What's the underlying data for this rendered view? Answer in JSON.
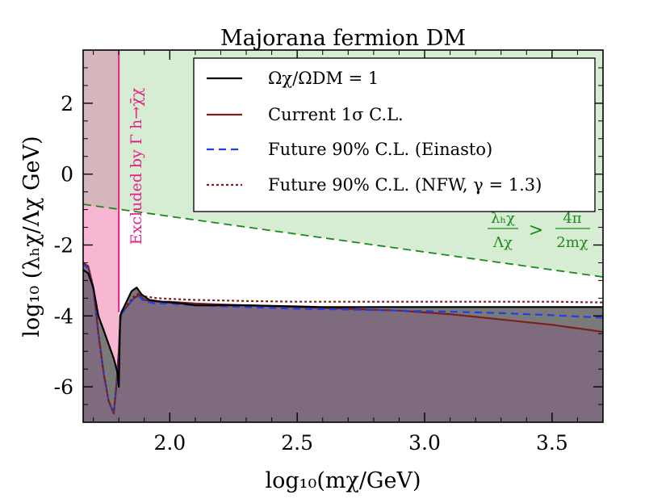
{
  "chart_data": {
    "type": "line",
    "title": "Majorana fermion DM",
    "xlabel": "log₁₀(mχ/GeV)",
    "ylabel": "log₁₀ (λₕχ/Λχ GeV)",
    "xlim": [
      1.66,
      3.7
    ],
    "ylim": [
      -7.0,
      3.5
    ],
    "x_ticks": [
      2.0,
      2.5,
      3.0,
      3.5
    ],
    "x_tick_labels": [
      "2.0",
      "2.5",
      "3.0",
      "3.5"
    ],
    "y_ticks": [
      2,
      0,
      -2,
      -4,
      -6
    ],
    "y_tick_labels": [
      "2",
      "0",
      "-2",
      "-4",
      "-6"
    ],
    "legend_position": "top-right",
    "legend": [
      {
        "label": "Ωχ/ΩDM = 1",
        "style": "solid",
        "color": "#000000"
      },
      {
        "label": "Current 1σ C.L.",
        "style": "solid",
        "color": "#7b1f1f"
      },
      {
        "label": "Future 90% C.L. (Einasto)",
        "style": "dashed",
        "color": "#1f3fe8"
      },
      {
        "label": "Future 90% C.L. (NFW, γ = 1.3)",
        "style": "dotted",
        "color": "#7b1f1f"
      }
    ],
    "annotations": {
      "excluded_label": "Excluded by Γ h→χ̄χ",
      "unitarity_lhs_num": "λₕχ",
      "unitarity_lhs_den": "Λχ",
      "unitarity_op": ">",
      "unitarity_rhs_num": "4π",
      "unitarity_rhs_den": "2mχ"
    },
    "regions": {
      "invisible_decay_boundary_x": 1.8,
      "unitarity_line": {
        "x": [
          1.66,
          3.7
        ],
        "y": [
          -0.85,
          -2.9
        ]
      }
    },
    "series": [
      {
        "name": "Ωχ/ΩDM = 1",
        "x": [
          1.66,
          1.68,
          1.7,
          1.72,
          1.74,
          1.76,
          1.78,
          1.795,
          1.8,
          1.805,
          1.81,
          1.83,
          1.85,
          1.87,
          1.89,
          1.92,
          1.97,
          2.05,
          2.1,
          2.3,
          2.6,
          3.0,
          3.3,
          3.5,
          3.7
        ],
        "y": [
          -2.7,
          -2.8,
          -3.2,
          -4.0,
          -4.4,
          -4.8,
          -5.2,
          -5.6,
          -6.0,
          -4.0,
          -3.9,
          -3.6,
          -3.3,
          -3.2,
          -3.4,
          -3.55,
          -3.6,
          -3.65,
          -3.7,
          -3.7,
          -3.75,
          -3.75,
          -3.75,
          -3.75,
          -3.75
        ]
      },
      {
        "name": "Current 1σ C.L.",
        "x": [
          1.66,
          1.68,
          1.7,
          1.72,
          1.74,
          1.76,
          1.78,
          1.79,
          1.8,
          1.805,
          1.81,
          1.83,
          1.86,
          1.88,
          1.9,
          1.95,
          2.0,
          2.1,
          2.3,
          2.5,
          2.7,
          2.9,
          3.1,
          3.3,
          3.5,
          3.7
        ],
        "y": [
          -2.5,
          -2.6,
          -3.2,
          -4.5,
          -5.6,
          -6.4,
          -6.75,
          -6.0,
          -5.0,
          -4.2,
          -3.95,
          -3.75,
          -3.5,
          -3.4,
          -3.55,
          -3.6,
          -3.6,
          -3.65,
          -3.7,
          -3.75,
          -3.8,
          -3.85,
          -3.95,
          -4.1,
          -4.25,
          -4.45
        ]
      },
      {
        "name": "Future 90% C.L. (Einasto)",
        "x": [
          1.66,
          1.68,
          1.7,
          1.72,
          1.74,
          1.76,
          1.78,
          1.79,
          1.8,
          1.805,
          1.81,
          1.83,
          1.86,
          1.88,
          1.9,
          1.95,
          2.0,
          2.1,
          2.3,
          2.5,
          2.7,
          2.9,
          3.1,
          3.3,
          3.5,
          3.7
        ],
        "y": [
          -2.55,
          -2.65,
          -3.25,
          -4.5,
          -5.6,
          -6.4,
          -6.75,
          -6.0,
          -5.0,
          -4.2,
          -3.95,
          -3.75,
          -3.5,
          -3.45,
          -3.6,
          -3.65,
          -3.65,
          -3.7,
          -3.75,
          -3.8,
          -3.82,
          -3.85,
          -3.88,
          -3.92,
          -3.98,
          -4.05
        ]
      },
      {
        "name": "Future 90% C.L. (NFW, γ = 1.3)",
        "x": [
          1.66,
          1.68,
          1.7,
          1.72,
          1.74,
          1.76,
          1.78,
          1.79,
          1.8,
          1.805,
          1.81,
          1.83,
          1.86,
          1.88,
          1.9,
          1.95,
          2.0,
          2.1,
          2.3,
          2.5,
          2.7,
          2.9,
          3.1,
          3.3,
          3.5,
          3.7
        ],
        "y": [
          -2.5,
          -2.6,
          -3.2,
          -4.5,
          -5.6,
          -6.4,
          -6.75,
          -6.0,
          -5.0,
          -4.2,
          -3.9,
          -3.7,
          -3.45,
          -3.35,
          -3.45,
          -3.5,
          -3.52,
          -3.55,
          -3.58,
          -3.6,
          -3.6,
          -3.6,
          -3.6,
          -3.6,
          -3.6,
          -3.62
        ]
      }
    ]
  }
}
